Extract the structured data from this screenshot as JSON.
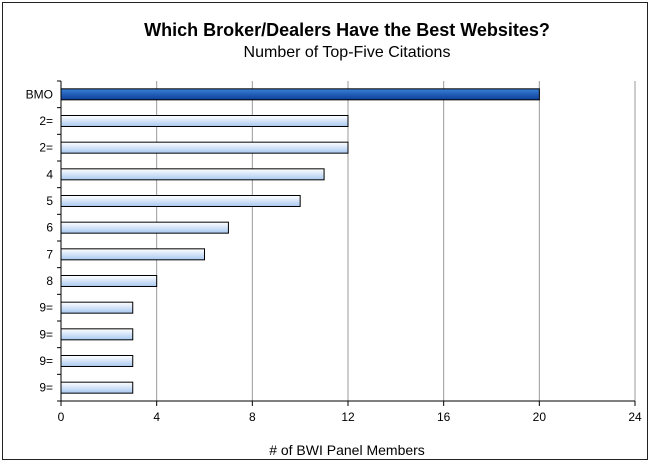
{
  "chart_data": {
    "type": "bar",
    "orientation": "horizontal",
    "title": "Which Broker/Dealers Have the Best Websites?",
    "subtitle": "Number of Top-Five Citations",
    "xlabel": "# of BWI Panel Members",
    "ylabel": "",
    "xlim": [
      0,
      24
    ],
    "xticks": [
      "0",
      "4",
      "8",
      "12",
      "16",
      "20",
      "24"
    ],
    "grid": "vertical",
    "categories": [
      "BMO",
      "2=",
      "2=",
      "4",
      "5",
      "6",
      "7",
      "8",
      "9=",
      "9=",
      "9=",
      "9="
    ],
    "values": [
      20,
      12,
      12,
      11,
      10,
      7,
      6,
      4,
      3,
      3,
      3,
      3
    ],
    "highlight_index": 0,
    "colors": {
      "highlight_top": "#3a80d6",
      "highlight_bottom": "#0c3f99",
      "bar_top": "#ffffff",
      "bar_bottom": "#a8c8f0",
      "bar_stroke": "#000000",
      "grid": "#999999"
    }
  }
}
